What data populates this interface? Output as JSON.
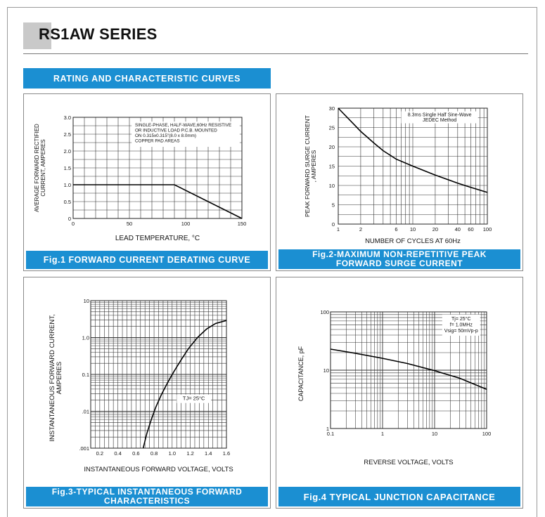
{
  "header": {
    "title": "RS1AW SERIES",
    "section": "RATING AND CHARACTERISTIC CURVES"
  },
  "charts": [
    {
      "id": "fig1",
      "type": "line",
      "caption": "Fig.1 FORWARD CURRENT DERATING CURVE",
      "xlabel": "LEAD TEMPERATURE, °C",
      "ylabel_lines": [
        "AVERAGE FORWARD RECTIFIED",
        "CURRENT, AMPERES"
      ],
      "note_lines": [
        "SINGLE-PHASE, HALF-WAVE,60Hz RESISTIVE",
        "OR INDUCTIVE LOAD P.C.B. MOUNTED",
        "ON 0.315x0.315\"(8.0 x 8.0mm)",
        "COPPER PAD AREAS"
      ],
      "x_ticks": [
        "0",
        "50",
        "100",
        "150"
      ],
      "y_ticks": [
        "0",
        "0.5",
        "1.0",
        "1.5",
        "2.0",
        "2.5",
        "3.0"
      ]
    },
    {
      "id": "fig2",
      "type": "line",
      "caption_lines": [
        "Fig.2-MAXIMUM NON-REPETITIVE PEAK",
        "FORWARD SURGE CURRENT"
      ],
      "xlabel": "NUMBER OF CYCLES AT 60Hz",
      "ylabel_lines": [
        "PEAK FORWARD SURGE CURRENT",
        ", AMPERES"
      ],
      "note_lines": [
        "8.3ms Single Half Sine-Wave",
        "JEDEC Method"
      ],
      "x_ticks": [
        "1",
        "2",
        "6",
        "10",
        "20",
        "40",
        "60",
        "100"
      ],
      "y_ticks": [
        "0",
        "5",
        "10",
        "15",
        "20",
        "25",
        "30"
      ]
    },
    {
      "id": "fig3",
      "type": "line",
      "caption_lines": [
        "Fig.3-TYPICAL INSTANTANEOUS FORWARD",
        "CHARACTERISTICS"
      ],
      "xlabel": "INSTANTANEOUS FORWARD VOLTAGE, VOLTS",
      "ylabel_lines": [
        "INSTANTANEOUS FORWARD CURRENT,",
        "AMPERES"
      ],
      "note": "TJ= 25°C",
      "x_ticks": [
        "0.2",
        "0.4",
        "0.6",
        "0.8",
        "1.0",
        "1.2",
        "1.4",
        "1.6"
      ],
      "y_ticks": [
        ".001",
        ".01",
        "0.1",
        "1.0",
        "10"
      ]
    },
    {
      "id": "fig4",
      "type": "line",
      "caption": "Fig.4 TYPICAL JUNCTION CAPACITANCE",
      "xlabel": "REVERSE VOLTAGE, VOLTS",
      "ylabel": "CAPACITANCE, pF",
      "note_lines": [
        "Tj= 25°C",
        "f= 1.0MHz",
        "Vsig= 50mVp-p"
      ],
      "x_ticks": [
        "0.1",
        "1",
        "10",
        "100"
      ],
      "y_ticks": [
        "1",
        "10",
        "100"
      ]
    }
  ],
  "chart_data": [
    {
      "type": "line",
      "title": "Fig.1 FORWARD CURRENT DERATING CURVE",
      "xlabel": "LEAD TEMPERATURE, °C",
      "ylabel": "AVERAGE FORWARD RECTIFIED CURRENT, AMPERES",
      "xlim": [
        0,
        150
      ],
      "ylim": [
        0,
        3.0
      ],
      "grid": true,
      "series": [
        {
          "x": [
            0,
            90,
            150
          ],
          "y": [
            1.0,
            1.0,
            0
          ]
        }
      ]
    },
    {
      "type": "line",
      "title": "Fig.2-MAXIMUM NON-REPETITIVE PEAK FORWARD SURGE CURRENT",
      "xlabel": "NUMBER OF CYCLES AT 60Hz",
      "ylabel": "PEAK FORWARD SURGE CURRENT , AMPERES",
      "xscale": "log",
      "xlim": [
        1,
        100
      ],
      "ylim": [
        0,
        30
      ],
      "grid": true,
      "series": [
        {
          "x": [
            1,
            1.5,
            2,
            3,
            4,
            6,
            10,
            20,
            40,
            60,
            100
          ],
          "y": [
            30,
            26.5,
            24,
            21,
            19,
            16.8,
            15,
            12.7,
            10.6,
            9.5,
            8.2
          ]
        }
      ]
    },
    {
      "type": "line",
      "title": "Fig.3-TYPICAL INSTANTANEOUS FORWARD CHARACTERISTICS",
      "xlabel": "INSTANTANEOUS FORWARD VOLTAGE, VOLTS",
      "ylabel": "INSTANTANEOUS FORWARD CURRENT, AMPERES",
      "yscale": "log",
      "xlim": [
        0.1,
        1.6
      ],
      "ylim": [
        0.001,
        10
      ],
      "grid": true,
      "series": [
        {
          "x": [
            0.68,
            0.72,
            0.77,
            0.82,
            0.88,
            0.95,
            1.02,
            1.1,
            1.18,
            1.28,
            1.38,
            1.48,
            1.6
          ],
          "y": [
            0.001,
            0.0025,
            0.006,
            0.013,
            0.028,
            0.06,
            0.12,
            0.25,
            0.5,
            1.0,
            1.7,
            2.4,
            2.9
          ]
        }
      ]
    },
    {
      "type": "line",
      "title": "Fig.4 TYPICAL JUNCTION CAPACITANCE",
      "xlabel": "REVERSE VOLTAGE, VOLTS",
      "ylabel": "CAPACITANCE, pF",
      "xscale": "log",
      "yscale": "log",
      "xlim": [
        0.1,
        100
      ],
      "ylim": [
        1,
        100
      ],
      "grid": true,
      "series": [
        {
          "x": [
            0.1,
            0.3,
            1,
            3,
            10,
            30,
            100
          ],
          "y": [
            23,
            19.5,
            16,
            13,
            9.8,
            7.3,
            4.7
          ]
        }
      ]
    }
  ]
}
